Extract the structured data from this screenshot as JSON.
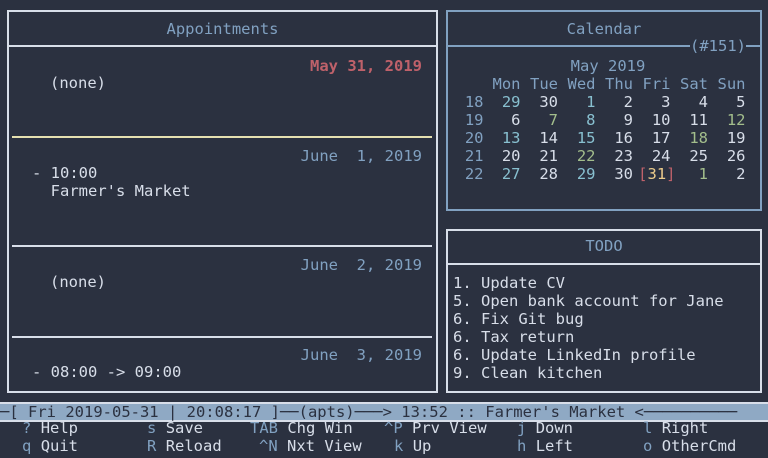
{
  "appointments": {
    "title": "Appointments",
    "days": [
      {
        "date": "May 31, 2019",
        "highlight": true,
        "items": [
          "(none)"
        ]
      },
      {
        "date": "June  1, 2019",
        "items": [
          "- 10:00",
          "  Farmer's Market"
        ]
      },
      {
        "date": "June  2, 2019",
        "items": [
          "(none)"
        ]
      },
      {
        "date": "June  3, 2019",
        "items": [
          "- 08:00 -> 09:00"
        ]
      }
    ]
  },
  "calendar": {
    "title": "Calendar",
    "day_of_year": "(#151)",
    "month": "May 2019",
    "weekdays": [
      "Mon",
      "Tue",
      "Wed",
      "Thu",
      "Fri",
      "Sat",
      "Sun"
    ],
    "weeks": [
      {
        "week": "18",
        "days": [
          [
            "29",
            "teal"
          ],
          [
            "30",
            "white"
          ],
          [
            "1",
            "teal"
          ],
          [
            "2",
            "white"
          ],
          [
            "3",
            "white"
          ],
          [
            "4",
            "white"
          ],
          [
            "5",
            "white"
          ]
        ]
      },
      {
        "week": "19",
        "days": [
          [
            "6",
            "white"
          ],
          [
            "7",
            "green"
          ],
          [
            "8",
            "teal"
          ],
          [
            "9",
            "white"
          ],
          [
            "10",
            "white"
          ],
          [
            "11",
            "white"
          ],
          [
            "12",
            "green"
          ]
        ]
      },
      {
        "week": "20",
        "days": [
          [
            "13",
            "teal"
          ],
          [
            "14",
            "white"
          ],
          [
            "15",
            "teal"
          ],
          [
            "16",
            "white"
          ],
          [
            "17",
            "white"
          ],
          [
            "18",
            "green"
          ],
          [
            "19",
            "white"
          ]
        ]
      },
      {
        "week": "21",
        "days": [
          [
            "20",
            "white"
          ],
          [
            "21",
            "white"
          ],
          [
            "22",
            "green"
          ],
          [
            "23",
            "white"
          ],
          [
            "24",
            "white"
          ],
          [
            "25",
            "white"
          ],
          [
            "26",
            "white"
          ]
        ]
      },
      {
        "week": "22",
        "days": [
          [
            "27",
            "teal"
          ],
          [
            "28",
            "white"
          ],
          [
            "29",
            "teal"
          ],
          [
            "30",
            "white"
          ],
          [
            "31",
            "today"
          ],
          [
            "1",
            "green"
          ],
          [
            "2",
            "white"
          ]
        ]
      }
    ]
  },
  "todo": {
    "title": "TODO",
    "items": [
      "1. Update CV",
      "5. Open bank account for Jane",
      "6. Fix Git bug",
      "6. Tax return",
      "6. Update LinkedIn profile",
      "9. Clean kitchen"
    ]
  },
  "status_bar": "─[ Fri 2019-05-31 | 20:08:17 ]──(apts)───> 13:52 :: Farmer's Market <──────────",
  "help": [
    {
      "key": "?",
      "label": "Help"
    },
    {
      "key": "s",
      "label": "Save"
    },
    {
      "key": "TAB",
      "label": "Chg Win"
    },
    {
      "key": "^P",
      "label": "Prv View"
    },
    {
      "key": "j",
      "label": "Down"
    },
    {
      "key": "l",
      "label": "Right"
    },
    {
      "key": "q",
      "label": "Quit"
    },
    {
      "key": "R",
      "label": "Reload"
    },
    {
      "key": "^N",
      "label": "Nxt View"
    },
    {
      "key": "k",
      "label": "Up"
    },
    {
      "key": "h",
      "label": "Left"
    },
    {
      "key": "o",
      "label": "OtherCmd"
    }
  ],
  "colors": {
    "background": "#2b3140",
    "accent": "#81a1c1",
    "today": "#bf616a",
    "appointment": "#88c0d0",
    "event": "#a3be8c"
  }
}
